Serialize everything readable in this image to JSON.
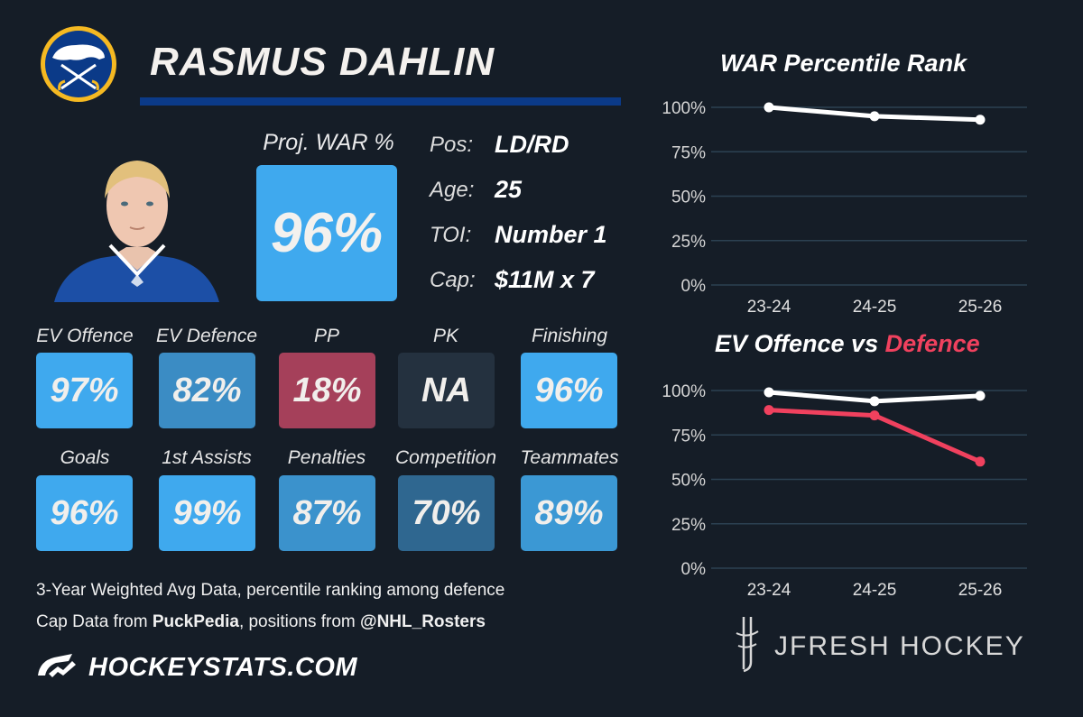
{
  "player": {
    "name": "RASMUS DAHLIN",
    "proj_war_label": "Proj. WAR %",
    "proj_war_value": "96%",
    "proj_war_color": "#3fa9ee",
    "info": [
      {
        "label": "Pos:",
        "value": "LD/RD"
      },
      {
        "label": "Age:",
        "value": "25"
      },
      {
        "label": "TOI:",
        "value": "Number 1"
      },
      {
        "label": "Cap:",
        "value": "$11M x 7"
      }
    ]
  },
  "tiles_row1": [
    {
      "label": "EV Offence",
      "value": "97%",
      "color": "#3fa9ee"
    },
    {
      "label": "EV Defence",
      "value": "82%",
      "color": "#3b8cc4"
    },
    {
      "label": "PP",
      "value": "18%",
      "color": "#a5405a"
    },
    {
      "label": "PK",
      "value": "NA",
      "color": "#24313f"
    },
    {
      "label": "Finishing",
      "value": "96%",
      "color": "#3fa9ee"
    }
  ],
  "tiles_row2": [
    {
      "label": "Goals",
      "value": "96%",
      "color": "#3fa9ee"
    },
    {
      "label": "1st Assists",
      "value": "99%",
      "color": "#3fa9ee"
    },
    {
      "label": "Penalties",
      "value": "87%",
      "color": "#3b92cc"
    },
    {
      "label": "Competition",
      "value": "70%",
      "color": "#2f6790"
    },
    {
      "label": "Teammates",
      "value": "89%",
      "color": "#3b98d4"
    }
  ],
  "footer": {
    "line1": "3-Year Weighted Avg Data, percentile ranking among defence",
    "line2_pre": "Cap Data from ",
    "line2_bold1": "PuckPedia",
    "line2_mid": ", positions from ",
    "line2_bold2": "@NHL_Rosters",
    "brand": "HOCKEYSTATS.COM",
    "credit": "JFRESH HOCKEY"
  },
  "chart_data": [
    {
      "type": "line",
      "title": "WAR Percentile Rank",
      "categories": [
        "23-24",
        "24-25",
        "25-26"
      ],
      "ylim": [
        0,
        100
      ],
      "yticks": [
        "0%",
        "25%",
        "50%",
        "75%",
        "100%"
      ],
      "series": [
        {
          "values": [
            100,
            95,
            93
          ],
          "color": "#ffffff"
        }
      ]
    },
    {
      "type": "line",
      "title_part1": "EV Offence vs ",
      "title_part2": "Defence",
      "title_part2_color": "#f0415e",
      "categories": [
        "23-24",
        "24-25",
        "25-26"
      ],
      "ylim": [
        0,
        100
      ],
      "yticks": [
        "0%",
        "25%",
        "50%",
        "75%",
        "100%"
      ],
      "series": [
        {
          "values": [
            99,
            94,
            97
          ],
          "color": "#ffffff"
        },
        {
          "values": [
            89,
            86,
            60
          ],
          "color": "#f0415e"
        }
      ]
    }
  ]
}
